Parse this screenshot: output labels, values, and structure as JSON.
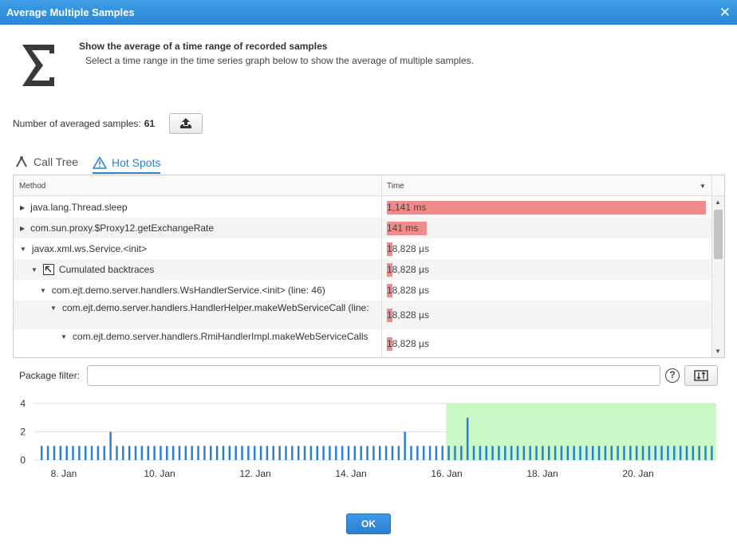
{
  "window": {
    "title": "Average Multiple Samples",
    "close_glyph": "✕"
  },
  "header": {
    "icon": "sigma-icon",
    "title": "Show the average of a time range of recorded samples",
    "description": "Select a time range in the time series graph below to show the average of multiple samples."
  },
  "samples": {
    "label": "Number of averaged samples:",
    "count": "61"
  },
  "tabs": [
    {
      "label": "Call Tree",
      "icon": "call-tree-icon",
      "active": false
    },
    {
      "label": "Hot Spots",
      "icon": "warning-icon",
      "active": true
    }
  ],
  "table": {
    "columns": [
      "Method",
      "Time"
    ],
    "rows": [
      {
        "label": "java.lang.Thread.sleep",
        "time": "1,141 ms",
        "fraction": 1.0
      },
      {
        "label": "com.sun.proxy.$Proxy12.getExchangeRate",
        "time": "141 ms",
        "fraction": 0.124
      },
      {
        "label": "javax.xml.ws.Service.<init>",
        "time": "18,828 µs",
        "fraction": 0.0165
      },
      {
        "label": "Cumulated backtraces",
        "time": "18,828 µs",
        "fraction": 0.0165
      },
      {
        "label": "com.ejt.demo.server.handlers.WsHandlerService.<init> (line: 46)",
        "time": "18,828 µs",
        "fraction": 0.0165
      },
      {
        "label": "com.ejt.demo.server.handlers.HandlerHelper.makeWebServiceCall (line:",
        "time": "18,828 µs",
        "fraction": 0.0165
      },
      {
        "label": "com.ejt.demo.server.handlers.RmiHandlerImpl.makeWebServiceCalls",
        "time": "18,828 µs",
        "fraction": 0.0165
      }
    ]
  },
  "filter": {
    "label": "Package filter:",
    "value": "",
    "placeholder": ""
  },
  "chart_data": {
    "type": "bar",
    "ylim": [
      0,
      4
    ],
    "yticks": [
      "4",
      "2",
      "0"
    ],
    "xticks": [
      "8. Jan",
      "10. Jan",
      "12. Jan",
      "14. Jan",
      "16. Jan",
      "18. Jan",
      "20. Jan"
    ],
    "bar_color": "#2a7fd4",
    "selection_color": "#c9f7c5",
    "bar_count": 108,
    "spikes": {
      "11": 2,
      "58": 2,
      "68": 3
    },
    "baseline_value": 1,
    "selection_start_index": 65
  },
  "footer": {
    "ok_label": "OK"
  }
}
